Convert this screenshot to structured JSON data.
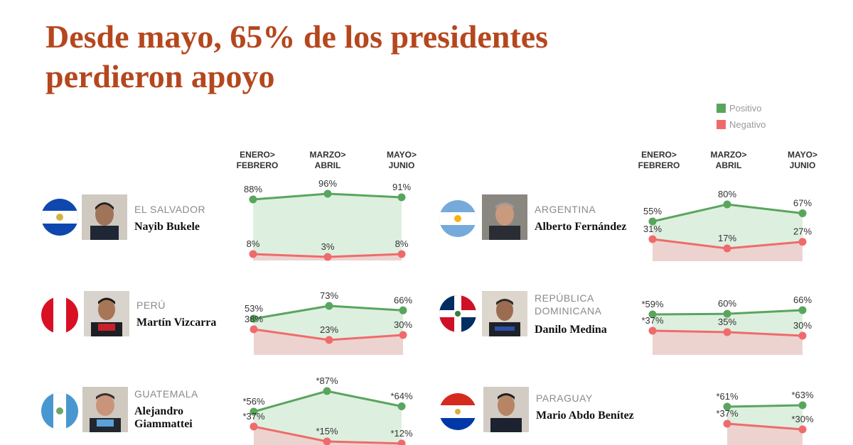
{
  "title": "Desde mayo, 65% de los presidentes perdieron apoyo",
  "legend": {
    "positive": "Positivo",
    "negative": "Negativo"
  },
  "colors": {
    "positive": "#5aa55e",
    "negative": "#ef6b6b",
    "positive_fill": "#ddefdf",
    "negative_fill": "#ecd3cf",
    "title": "#b5471e"
  },
  "periods": [
    {
      "line1": "ENERO>",
      "line2": "FEBRERO"
    },
    {
      "line1": "MARZO>",
      "line2": "ABRIL"
    },
    {
      "line1": "MAYO>",
      "line2": "JUNIO"
    }
  ],
  "chart_data": [
    {
      "type": "line",
      "country": "EL SALVADOR",
      "name": "Nayib Bukele",
      "categories": [
        "Enero>Febrero",
        "Marzo>Abril",
        "Mayo>Junio"
      ],
      "series": [
        {
          "name": "Positivo",
          "values": [
            88,
            96,
            91
          ],
          "labels": [
            "88%",
            "96%",
            "91%"
          ]
        },
        {
          "name": "Negativo",
          "values": [
            8,
            3,
            8
          ],
          "labels": [
            "8%",
            "3%",
            "8%"
          ]
        }
      ]
    },
    {
      "type": "line",
      "country": "ARGENTINA",
      "name": "Alberto Fernández",
      "categories": [
        "Enero>Febrero",
        "Marzo>Abril",
        "Mayo>Junio"
      ],
      "series": [
        {
          "name": "Positivo",
          "values": [
            55,
            80,
            67
          ],
          "labels": [
            "55%",
            "80%",
            "67%"
          ]
        },
        {
          "name": "Negativo",
          "values": [
            31,
            17,
            27
          ],
          "labels": [
            "31%",
            "17%",
            "27%"
          ]
        }
      ]
    },
    {
      "type": "line",
      "country": "PERÚ",
      "name": "Martín Vizcarra",
      "categories": [
        "Enero>Febrero",
        "Marzo>Abril",
        "Mayo>Junio"
      ],
      "series": [
        {
          "name": "Positivo",
          "values": [
            53,
            73,
            66
          ],
          "labels": [
            "53%",
            "73%",
            "66%"
          ]
        },
        {
          "name": "Negativo",
          "values": [
            38,
            23,
            30
          ],
          "labels": [
            "38%",
            "23%",
            "30%"
          ]
        }
      ]
    },
    {
      "type": "line",
      "country": "REPÚBLICA DOMINICANA",
      "name": "Danilo Medina",
      "categories": [
        "Enero>Febrero",
        "Marzo>Abril",
        "Mayo>Junio"
      ],
      "series": [
        {
          "name": "Positivo",
          "values": [
            59,
            60,
            66
          ],
          "labels": [
            "*59%",
            "60%",
            "66%"
          ]
        },
        {
          "name": "Negativo",
          "values": [
            37,
            35,
            30
          ],
          "labels": [
            "*37%",
            "35%",
            "30%"
          ]
        }
      ]
    },
    {
      "type": "line",
      "country": "GUATEMALA",
      "name": "Alejandro Giammattei",
      "categories": [
        "Enero>Febrero",
        "Marzo>Abril",
        "Mayo>Junio"
      ],
      "series": [
        {
          "name": "Positivo",
          "values": [
            56,
            87,
            64
          ],
          "labels": [
            "*56%",
            "*87%",
            "*64%"
          ]
        },
        {
          "name": "Negativo",
          "values": [
            37,
            15,
            12
          ],
          "labels": [
            "*37%",
            "*15%",
            "*12%"
          ]
        }
      ]
    },
    {
      "type": "line",
      "country": "PARAGUAY",
      "name": "Mario Abdo Benítez",
      "categories": [
        "Enero>Febrero",
        "Marzo>Abril",
        "Mayo>Junio"
      ],
      "series": [
        {
          "name": "Positivo",
          "values": [
            null,
            61,
            63
          ],
          "labels": [
            null,
            "*61%",
            "*63%"
          ]
        },
        {
          "name": "Negativo",
          "values": [
            null,
            37,
            30
          ],
          "labels": [
            null,
            "*37%",
            "*30%"
          ]
        }
      ]
    }
  ]
}
